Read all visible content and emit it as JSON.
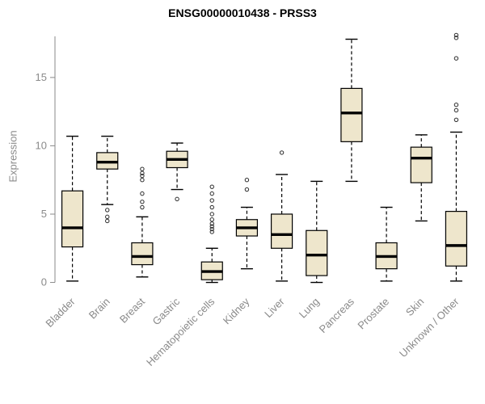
{
  "title": "ENSG00000010438 - PRSS3",
  "y_axis": {
    "label": "Expression"
  },
  "chart_data": {
    "type": "boxplot",
    "title": "ENSG00000010438 - PRSS3",
    "xlabel": "",
    "ylabel": "Expression",
    "ylim": [
      -0.5,
      18.6
    ],
    "yticks": [
      0,
      5,
      10,
      15
    ],
    "grid": false,
    "box_fill": "#EEE6CC",
    "box_stroke": "#000000",
    "axis_color": "#8a8a8a",
    "categories": [
      "Bladder",
      "Brain",
      "Breast",
      "Gastric",
      "Hematopoietic cells",
      "Kidney",
      "Liver",
      "Lung",
      "Pancreas",
      "Prostate",
      "Skin",
      "Unknown / Other"
    ],
    "boxes": [
      {
        "category": "Bladder",
        "low": 0.1,
        "q1": 2.6,
        "median": 4.0,
        "q3": 6.7,
        "high": 10.7,
        "outliers": []
      },
      {
        "category": "Brain",
        "low": 5.7,
        "q1": 8.3,
        "median": 8.8,
        "q3": 9.5,
        "high": 10.7,
        "outliers": [
          5.3,
          4.8,
          4.5
        ]
      },
      {
        "category": "Breast",
        "low": 0.4,
        "q1": 1.3,
        "median": 1.9,
        "q3": 2.9,
        "high": 4.8,
        "outliers": [
          5.5,
          5.9,
          6.5,
          7.5,
          7.8,
          8.0,
          8.3
        ]
      },
      {
        "category": "Gastric",
        "low": 6.8,
        "q1": 8.4,
        "median": 9.0,
        "q3": 9.6,
        "high": 10.2,
        "outliers": [
          6.1
        ]
      },
      {
        "category": "Hematopoietic cells",
        "low": 0.0,
        "q1": 0.2,
        "median": 0.8,
        "q3": 1.5,
        "high": 2.5,
        "outliers": [
          3.7,
          3.9,
          4.1,
          4.3,
          4.6,
          5.0,
          5.5,
          6.0,
          6.5,
          7.0
        ]
      },
      {
        "category": "Kidney",
        "low": 1.0,
        "q1": 3.4,
        "median": 4.0,
        "q3": 4.6,
        "high": 5.5,
        "outliers": [
          6.8,
          7.5
        ]
      },
      {
        "category": "Liver",
        "low": 0.1,
        "q1": 2.5,
        "median": 3.5,
        "q3": 5.0,
        "high": 7.9,
        "outliers": [
          9.5
        ]
      },
      {
        "category": "Lung",
        "low": 0.0,
        "q1": 0.5,
        "median": 2.0,
        "q3": 3.8,
        "high": 7.4,
        "outliers": []
      },
      {
        "category": "Pancreas",
        "low": 7.4,
        "q1": 10.3,
        "median": 12.4,
        "q3": 14.2,
        "high": 17.8,
        "outliers": []
      },
      {
        "category": "Prostate",
        "low": 0.1,
        "q1": 1.0,
        "median": 1.9,
        "q3": 2.9,
        "high": 5.5,
        "outliers": []
      },
      {
        "category": "Skin",
        "low": 4.5,
        "q1": 7.3,
        "median": 9.1,
        "q3": 9.9,
        "high": 10.8,
        "outliers": []
      },
      {
        "category": "Unknown / Other",
        "low": 0.1,
        "q1": 1.2,
        "median": 2.7,
        "q3": 5.2,
        "high": 11.0,
        "outliers": [
          11.9,
          12.6,
          13.0,
          16.4,
          17.9,
          18.1
        ]
      }
    ]
  }
}
